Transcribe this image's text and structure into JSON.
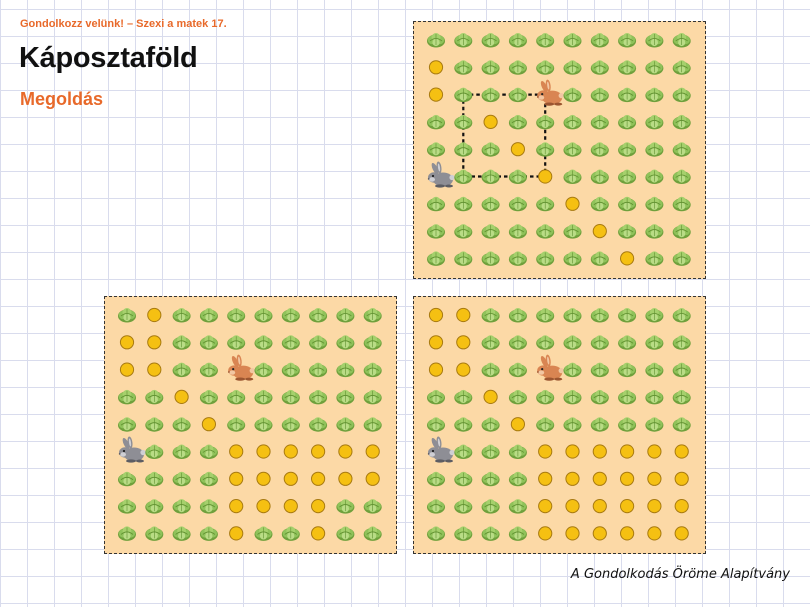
{
  "header": {
    "subject_line": "Gondolkozz velünk! – Szexi a matek 17.",
    "title": "Káposztaföld",
    "subtitle": "Megoldás"
  },
  "footer": {
    "credit": "A Gondolkodás Öröme Alapítvány"
  },
  "colors": {
    "board_bg": "#fcd9a6",
    "cabbage": "#8fc25a",
    "coin": "#f5c012",
    "accent": "#e8692a"
  },
  "legend_icons": {
    "brown_rabbit": "brown-rabbit-icon",
    "gray_rabbit": "gray-rabbit-icon",
    "cabbage": "cabbage-icon",
    "eaten_spot": "coin-icon"
  },
  "boards": [
    {
      "id": "board-top-right",
      "grid": [
        "CCCCCCCCCC",
        "OCCCCCCCCC",
        "OCCCBCCCCC",
        "CCOCCCCCCC",
        "CCCOCCCCCC",
        "GCCCOCCCCC",
        "CCCCCOCCCC",
        "CCCCCCOCCC",
        "CCCCCCCOCC"
      ],
      "path_square": {
        "row_from": 2,
        "col_from": 1,
        "row_to": 5,
        "col_to": 4
      }
    },
    {
      "id": "board-bottom-left",
      "grid": [
        "COCCCCCCCC",
        "OOCCCCCCCC",
        "OOCCBCCCCC",
        "CCOCCCCCCC",
        "CCCOCCCCCC",
        "GCCCOOOOOO",
        "CCCCOOOOOO",
        "CCCCOOOOCC",
        "CCCCOCCOCC"
      ]
    },
    {
      "id": "board-bottom-right",
      "grid": [
        "OOCCCCCCCC",
        "OOCCCCCCCC",
        "OOCCBCCCCC",
        "CCOCCCCCCC",
        "CCCOCCCCCC",
        "GCCCOOOOOO",
        "CCCCOOOOOO",
        "CCCCOOOOOO",
        "CCCCOOOOOO"
      ]
    }
  ]
}
